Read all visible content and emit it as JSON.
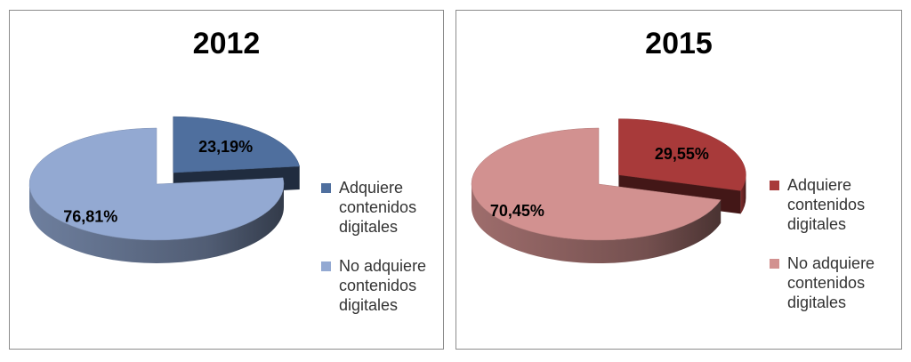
{
  "chart_data": [
    {
      "type": "pie",
      "title": "2012",
      "categories": [
        "Adquiere contenidos digitales",
        "No adquiere contenidos digitales"
      ],
      "values": [
        23.19,
        76.81
      ],
      "value_labels": [
        "23,19%",
        "76,81%"
      ],
      "colors": [
        "#4F6F9E",
        "#93A9D2"
      ],
      "exploded": [
        true,
        false
      ],
      "style": "3d",
      "legend_position": "right"
    },
    {
      "type": "pie",
      "title": "2015",
      "categories": [
        "Adquiere contenidos digitales",
        "No adquiere contenidos digitales"
      ],
      "values": [
        29.55,
        70.45
      ],
      "value_labels": [
        "29,55%",
        "70,45%"
      ],
      "colors": [
        "#A83A3A",
        "#D29190"
      ],
      "exploded": [
        true,
        false
      ],
      "style": "3d",
      "legend_position": "right"
    }
  ],
  "legend_labels": [
    [
      "Adquiere\ncontenidos\ndigitales",
      "No adquiere\ncontenidos\ndigitales"
    ],
    [
      "Adquiere\ncontenidos\ndigitales",
      "No adquiere\ncontenidos\ndigitales"
    ]
  ]
}
